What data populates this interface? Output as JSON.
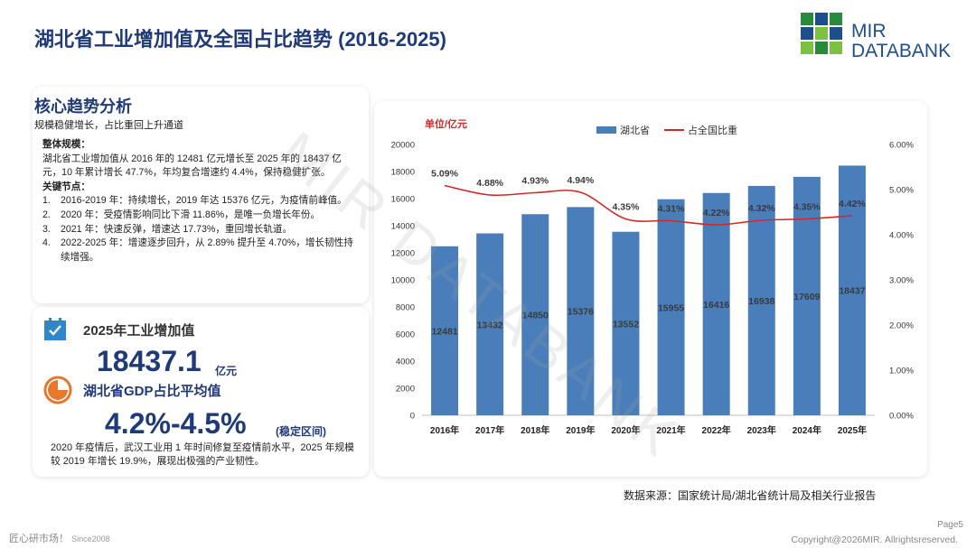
{
  "page": {
    "title": "湖北省工业增加值及全国占比趋势 (2016-2025)",
    "logo_line1": "MIR",
    "logo_line2": "DATABANK",
    "watermark": "MIR DATABANK",
    "source": "数据来源：国家统计局/湖北省统计局及相关行业报告",
    "footer_left": "匠心研市场！",
    "footer_since": "Since2008",
    "page_number": "Page5",
    "copyright": "Copyright@2026MIR. Allrightsreserved."
  },
  "analysis": {
    "title": "核心趋势分析",
    "subtitle": "规模稳健增长，占比重回上升通道",
    "overall_heading": "整体规模：",
    "overall_text": "湖北省工业增加值从 2016 年的 12481 亿元增长至 2025 年的 18437 亿元，10 年累计增长 47.7%，年均复合增速约 4.4%，保持稳健扩张。",
    "nodes_heading": "关键节点：",
    "nodes": [
      {
        "num": "1.",
        "text": "2016-2019 年：持续增长，2019 年达 15376 亿元，为疫情前峰值。"
      },
      {
        "num": "2.",
        "text": "2020 年：受疫情影响同比下滑 11.86%，是唯一负增长年份。"
      },
      {
        "num": "3.",
        "text": "2021 年：快速反弹，增速达 17.73%，重回增长轨道。"
      },
      {
        "num": "4.",
        "text": "2022-2025 年：增速逐步回升，从 2.89% 提升至 4.70%，增长韧性持续增强。"
      }
    ]
  },
  "kpi": {
    "label1": "2025年工业增加值",
    "value1": "18437.1",
    "unit1": "亿元",
    "label2": "湖北省GDP占比平均值",
    "value2": "4.2%-4.5%",
    "unit2": "(稳定区间)",
    "note": "2020 年疫情后，武汉工业用 1 年时间修复至疫情前水平，2025 年规模较 2019 年增长 19.9%，展现出极强的产业韧性。",
    "icon1": "checkbox-icon",
    "icon2": "pie-chart-icon"
  },
  "chart_data": {
    "type": "bar+line",
    "categories": [
      "2016年",
      "2017年",
      "2018年",
      "2019年",
      "2020年",
      "2021年",
      "2022年",
      "2023年",
      "2024年",
      "2025年"
    ],
    "series": [
      {
        "name": "湖北省",
        "type": "bar",
        "axis": "left",
        "color": "#4a7ebb",
        "values": [
          12481,
          13432,
          14850,
          15376,
          13552,
          15955,
          16416,
          16938,
          17609,
          18437
        ],
        "labels": [
          "12481",
          "13432",
          "14850",
          "15376",
          "13552",
          "15955",
          "16416",
          "16938",
          "17609",
          "18437"
        ]
      },
      {
        "name": "占全国比重",
        "type": "line",
        "axis": "right",
        "color": "#d62728",
        "values": [
          5.09,
          4.88,
          4.93,
          4.94,
          4.35,
          4.31,
          4.22,
          4.32,
          4.35,
          4.42
        ],
        "labels": [
          "5.09%",
          "4.88%",
          "4.93%",
          "4.94%",
          "4.35%",
          "4.31%",
          "4.22%",
          "4.32%",
          "4.35%",
          "4.42%"
        ]
      }
    ],
    "unit_label": "单位/亿元",
    "ylim": [
      0,
      20000
    ],
    "yticks": [
      "0",
      "2000",
      "4000",
      "6000",
      "8000",
      "10000",
      "12000",
      "14000",
      "16000",
      "18000",
      "20000"
    ],
    "ylim_right": [
      0,
      6
    ],
    "yticks_right": [
      "0.00%",
      "1.00%",
      "2.00%",
      "3.00%",
      "4.00%",
      "5.00%",
      "6.00%"
    ],
    "legend_position": "top"
  }
}
